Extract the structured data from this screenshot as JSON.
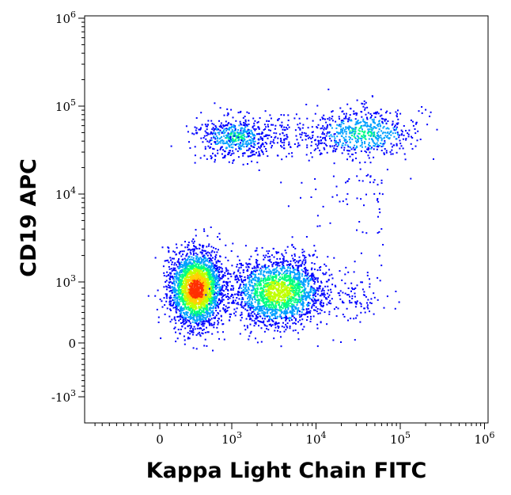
{
  "chart_data": {
    "type": "scatter",
    "style": "flow-cytometry density dot plot",
    "xlabel": "Kappa Light Chain FITC",
    "ylabel": "CD19 APC",
    "x_scale": "biexponential (log above 10^3, linear around 0)",
    "y_scale": "biexponential (log above 10^3, linear around 0)",
    "x_ticks": [
      {
        "value": 0,
        "base": "0",
        "exp": ""
      },
      {
        "value": 1000,
        "base": "10",
        "exp": "3"
      },
      {
        "value": 10000,
        "base": "10",
        "exp": "4"
      },
      {
        "value": 100000,
        "base": "10",
        "exp": "5"
      },
      {
        "value": 1000000,
        "base": "10",
        "exp": "6"
      }
    ],
    "y_ticks": [
      {
        "value": -1000,
        "base": "-10",
        "exp": "3"
      },
      {
        "value": 0,
        "base": "0",
        "exp": ""
      },
      {
        "value": 1000,
        "base": "10",
        "exp": "3"
      },
      {
        "value": 10000,
        "base": "10",
        "exp": "4"
      },
      {
        "value": 100000,
        "base": "10",
        "exp": "5"
      },
      {
        "value": 1000000,
        "base": "10",
        "exp": "6"
      }
    ],
    "xlim": [
      -1000,
      1000000
    ],
    "ylim": [
      -2000,
      1000000
    ],
    "grid": false,
    "legend": "none",
    "colormap": [
      "#0000ff",
      "#00a0ff",
      "#00ff80",
      "#c0ff00",
      "#ffd000",
      "#ff3000"
    ],
    "populations": [
      {
        "x_center": 500,
        "y_center": 900,
        "density": "highest"
      },
      {
        "x_center": 3500,
        "y_center": 850,
        "density": "high"
      },
      {
        "x_center": 30000,
        "y_center": 750,
        "density": "low"
      },
      {
        "x_center": 1100,
        "y_center": 45000,
        "density": "medium"
      },
      {
        "x_center": 4000,
        "y_center": 45000,
        "density": "low"
      },
      {
        "x_center": 35000,
        "y_center": 50000,
        "density": "medium"
      }
    ]
  }
}
